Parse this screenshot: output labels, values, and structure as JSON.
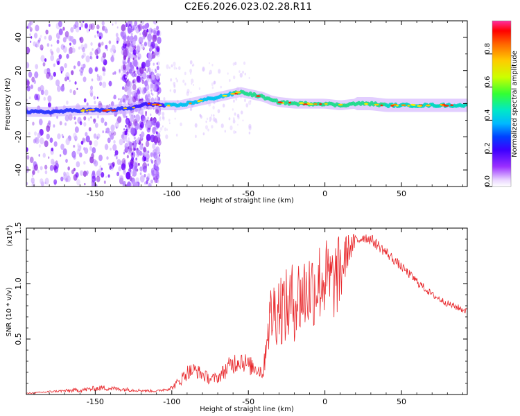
{
  "title": "C2E6.2026.023.02.28.R11",
  "chart_data": [
    {
      "type": "heatmap",
      "xlabel": "Height of straight line (km)",
      "ylabel": "Frequency (Hz)",
      "xlim": [
        -195,
        93
      ],
      "ylim": [
        -50,
        50
      ],
      "xticks": [
        -150,
        -100,
        -50,
        0,
        50
      ],
      "xtick_labels": [
        "-150",
        "-100",
        "-50",
        "0",
        "50"
      ],
      "yticks": [
        -40,
        -20,
        0,
        20,
        40
      ],
      "ytick_labels": [
        "-40",
        "-20",
        "0",
        "20",
        "40"
      ],
      "ridge": {
        "x": [
          -195,
          -180,
          -160,
          -140,
          -132,
          -128,
          -115,
          -105,
          -95,
          -85,
          -75,
          -65,
          -55,
          -50,
          -45,
          -40,
          -35,
          -30,
          -20,
          -10,
          0,
          10,
          20,
          30,
          40,
          50,
          60,
          70,
          80,
          93
        ],
        "y": [
          -5,
          -5,
          -4,
          -4,
          -3,
          -3,
          0,
          -1,
          -1,
          1,
          3,
          5,
          7,
          6,
          5,
          4,
          2,
          1,
          0,
          0,
          0,
          -1,
          0,
          0,
          -1,
          -1,
          -1,
          -1,
          -1,
          -1
        ]
      },
      "colorbar": {
        "label": "Normalized spectral amplitude",
        "range": [
          0,
          1
        ],
        "ticks": [
          0.0,
          0.2,
          0.4,
          0.6,
          0.8
        ],
        "tick_labels": [
          "0.0",
          "0.2",
          "0.4",
          "0.6",
          "0.8"
        ]
      }
    },
    {
      "type": "line",
      "xlabel": "Height of straight line (km)",
      "ylabel": "SNR (10 * v/v)",
      "scale_label": "(x10",
      "scale_exponent": "4",
      "scale_close": ")",
      "xlim": [
        -195,
        93
      ],
      "ylim": [
        0,
        1.5
      ],
      "xticks": [
        -150,
        -100,
        -50,
        0,
        50
      ],
      "xtick_labels": [
        "-150",
        "-100",
        "-50",
        "0",
        "50"
      ],
      "yticks": [
        0.5,
        1.0,
        1.5
      ],
      "ytick_labels": [
        "0.5",
        "1.0",
        "1.5"
      ],
      "series": [
        {
          "name": "SNR",
          "color": "#e8262a",
          "x": [
            -195,
            -175,
            -160,
            -145,
            -125,
            -110,
            -100,
            -95,
            -90,
            -85,
            -80,
            -75,
            -70,
            -65,
            -60,
            -55,
            -50,
            -45,
            -40,
            -38,
            -35,
            -30,
            -25,
            -20,
            -15,
            -10,
            -5,
            0,
            5,
            10,
            15,
            20,
            25,
            30,
            40,
            50,
            60,
            70,
            80,
            93
          ],
          "y": [
            0.01,
            0.03,
            0.04,
            0.06,
            0.04,
            0.03,
            0.06,
            0.12,
            0.2,
            0.22,
            0.18,
            0.14,
            0.15,
            0.22,
            0.28,
            0.32,
            0.26,
            0.24,
            0.2,
            0.55,
            0.72,
            0.8,
            0.78,
            0.85,
            0.9,
            0.95,
            1.0,
            1.05,
            1.0,
            1.1,
            1.3,
            1.38,
            1.42,
            1.4,
            1.28,
            1.15,
            1.02,
            0.9,
            0.82,
            0.75
          ],
          "noise_amplitude": [
            0.005,
            0.01,
            0.02,
            0.025,
            0.015,
            0.01,
            0.02,
            0.05,
            0.07,
            0.07,
            0.06,
            0.05,
            0.05,
            0.08,
            0.1,
            0.1,
            0.09,
            0.08,
            0.08,
            0.2,
            0.32,
            0.35,
            0.35,
            0.38,
            0.38,
            0.38,
            0.38,
            0.38,
            0.36,
            0.35,
            0.15,
            0.07,
            0.05,
            0.05,
            0.05,
            0.04,
            0.04,
            0.03,
            0.03,
            0.03
          ]
        }
      ]
    }
  ]
}
